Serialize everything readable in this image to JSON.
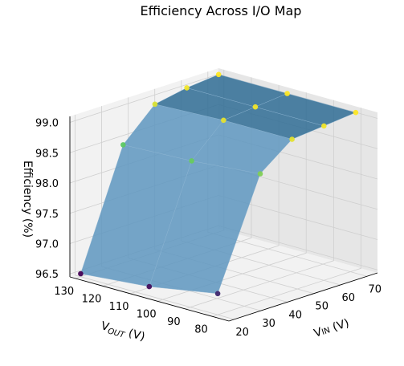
{
  "chart_data": {
    "type": "surface3d",
    "title": "Efficiency Across I/O Map",
    "x_axis": {
      "label": "Vₓ",
      "label_main": "V",
      "label_sub": "IN",
      "label_unit": " (V)",
      "ticks": [
        20,
        30,
        40,
        50,
        60,
        70
      ],
      "range": [
        18,
        74
      ]
    },
    "y_axis": {
      "label_main": "V",
      "label_sub": "OUT",
      "label_unit": " (V)",
      "ticks": [
        80,
        90,
        100,
        110,
        120,
        130
      ],
      "range": [
        74,
        132
      ]
    },
    "z_axis": {
      "label": "Efficiency (%)",
      "ticks": [
        "96.5",
        "97.0",
        "97.5",
        "98.0",
        "98.5",
        "99.0"
      ],
      "range": [
        96.45,
        99.1
      ]
    },
    "grid": true,
    "colormap": "viridis",
    "points": [
      {
        "vin": 20,
        "vout": 130,
        "eff": 96.5
      },
      {
        "vin": 20,
        "vout": 105,
        "eff": 96.6
      },
      {
        "vin": 20,
        "vout": 80,
        "eff": 96.8
      },
      {
        "vin": 36,
        "vout": 130,
        "eff": 98.4
      },
      {
        "vin": 36,
        "vout": 105,
        "eff": 98.45
      },
      {
        "vin": 36,
        "vout": 80,
        "eff": 98.55
      },
      {
        "vin": 48,
        "vout": 130,
        "eff": 98.9
      },
      {
        "vin": 48,
        "vout": 105,
        "eff": 98.95
      },
      {
        "vin": 48,
        "vout": 80,
        "eff": 98.95
      },
      {
        "vin": 60,
        "vout": 130,
        "eff": 99.0
      },
      {
        "vin": 60,
        "vout": 105,
        "eff": 99.0
      },
      {
        "vin": 60,
        "vout": 80,
        "eff": 99.0
      },
      {
        "vin": 72,
        "vout": 130,
        "eff": 99.05
      },
      {
        "vin": 72,
        "vout": 105,
        "eff": 99.05
      },
      {
        "vin": 72,
        "vout": 80,
        "eff": 99.05
      }
    ]
  }
}
